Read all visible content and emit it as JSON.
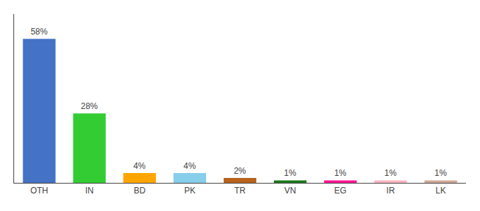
{
  "chart_data": {
    "type": "bar",
    "categories": [
      "OTH",
      "IN",
      "BD",
      "PK",
      "TR",
      "VN",
      "EG",
      "IR",
      "LK"
    ],
    "values": [
      58,
      28,
      4,
      4,
      2,
      1,
      1,
      1,
      1
    ],
    "value_labels": [
      "58%",
      "28%",
      "4%",
      "4%",
      "2%",
      "1%",
      "1%",
      "1%",
      "1%"
    ],
    "colors": [
      "#4472c4",
      "#33cc33",
      "#ffa500",
      "#87ceeb",
      "#b8621b",
      "#1a7a1a",
      "#ff1493",
      "#ffb6c1",
      "#d2a89a"
    ],
    "ylim": [
      0,
      68
    ],
    "data_labels": true,
    "tick_labels": "x",
    "grid": false
  }
}
